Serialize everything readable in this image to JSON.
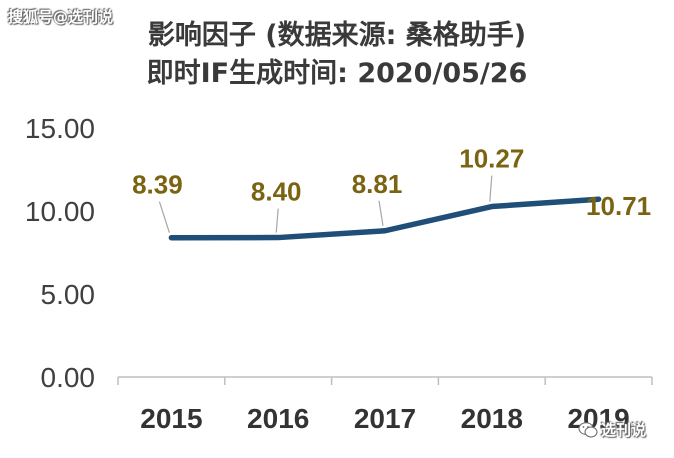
{
  "watermark_top": "搜狐号@选刊说",
  "watermark_bottom": "选刊说",
  "icons": {
    "watermark_bottom": "wechat-icon"
  },
  "colors": {
    "line": "#1f4e79",
    "data_label": "#7a6412",
    "axis": "#bfbfbf"
  },
  "chart_data": {
    "type": "line",
    "title": "影响因子 (数据来源: 桑格助手)",
    "subtitle": "即时IF生成时间: 2020/05/26",
    "categories": [
      "2015",
      "2016",
      "2017",
      "2018",
      "2019"
    ],
    "series": [
      {
        "values": [
          8.39,
          8.4,
          8.81,
          10.27,
          10.71
        ]
      }
    ],
    "data_labels": [
      "8.39",
      "8.40",
      "8.81",
      "10.27",
      "10.71"
    ],
    "y_ticks": [
      "0.00",
      "5.00",
      "10.00",
      "15.00"
    ],
    "ylim": [
      0,
      15
    ],
    "xlabel": "",
    "ylabel": "",
    "grid": false,
    "legend": "none"
  }
}
